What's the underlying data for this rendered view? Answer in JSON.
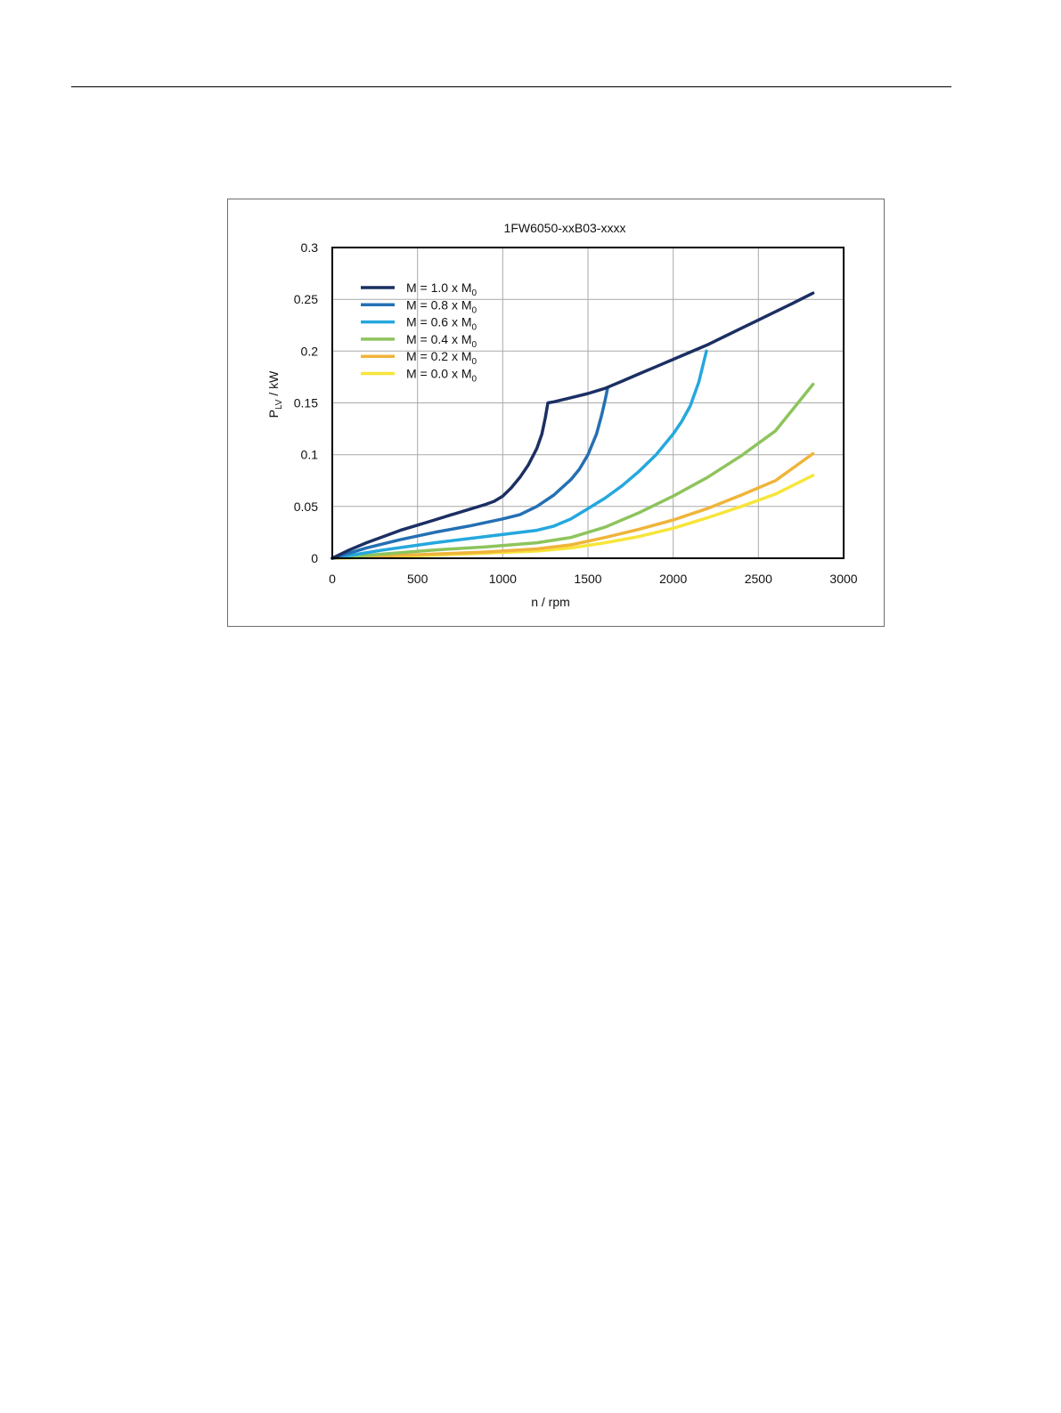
{
  "chart_data": {
    "type": "line",
    "title": "1FW6050-xxB03-xxxx",
    "xlabel": "n / rpm",
    "ylabel": {
      "main": "P",
      "sub": "LV",
      "rest": " / kW"
    },
    "xlim": [
      0,
      3000
    ],
    "ylim": [
      0,
      0.3
    ],
    "xticks": [
      0,
      500,
      1000,
      1500,
      2000,
      2500,
      3000
    ],
    "yticks": [
      0,
      0.05,
      0.1,
      0.15,
      0.2,
      0.25,
      0.3
    ],
    "xtick_labels": [
      "0",
      "500",
      "1000",
      "1500",
      "2000",
      "2500",
      "3000"
    ],
    "ytick_labels": [
      "0",
      "0.05",
      "0.1",
      "0.15",
      "0.2",
      "0.25",
      "0.3"
    ],
    "grid": true,
    "legend_position": "top-left",
    "series": [
      {
        "name": "M = 1.0 x M0",
        "label_main": "M = 1.0 x M",
        "label_sub": "0",
        "color": "#1b2f63",
        "x": [
          0,
          100,
          200,
          300,
          400,
          500,
          600,
          700,
          800,
          900,
          950,
          1000,
          1050,
          1100,
          1150,
          1200,
          1230,
          1250,
          1265,
          1300,
          1400,
          1500,
          1600,
          1700,
          1800,
          1900,
          2000,
          2100,
          2200,
          2300,
          2400,
          2500,
          2600,
          2700,
          2820
        ],
        "y": [
          0,
          0.008,
          0.015,
          0.021,
          0.027,
          0.032,
          0.037,
          0.042,
          0.047,
          0.052,
          0.055,
          0.06,
          0.068,
          0.078,
          0.09,
          0.106,
          0.12,
          0.136,
          0.15,
          0.151,
          0.155,
          0.159,
          0.164,
          0.171,
          0.178,
          0.185,
          0.192,
          0.199,
          0.206,
          0.214,
          0.222,
          0.23,
          0.238,
          0.246,
          0.256
        ]
      },
      {
        "name": "M = 0.8 x M0",
        "label_main": "M = 0.8 x M",
        "label_sub": "0",
        "color": "#2470b3",
        "x": [
          0,
          200,
          400,
          600,
          800,
          1000,
          1100,
          1200,
          1300,
          1400,
          1450,
          1500,
          1550,
          1580,
          1600,
          1615
        ],
        "y": [
          0,
          0.01,
          0.018,
          0.025,
          0.031,
          0.038,
          0.042,
          0.05,
          0.061,
          0.076,
          0.086,
          0.1,
          0.12,
          0.138,
          0.152,
          0.164
        ]
      },
      {
        "name": "M = 0.6 x M0",
        "label_main": "M = 0.6 x M",
        "label_sub": "0",
        "color": "#25a8de",
        "x": [
          0,
          300,
          600,
          900,
          1200,
          1300,
          1400,
          1500,
          1600,
          1700,
          1800,
          1900,
          2000,
          2050,
          2100,
          2150,
          2180,
          2195
        ],
        "y": [
          0,
          0.008,
          0.015,
          0.021,
          0.027,
          0.031,
          0.038,
          0.048,
          0.058,
          0.07,
          0.084,
          0.1,
          0.12,
          0.132,
          0.147,
          0.17,
          0.19,
          0.2
        ]
      },
      {
        "name": "M = 0.4 x M0",
        "label_main": "M = 0.4 x M",
        "label_sub": "0",
        "color": "#8dc45c",
        "x": [
          0,
          300,
          600,
          900,
          1200,
          1400,
          1600,
          1800,
          2000,
          2200,
          2400,
          2600,
          2820
        ],
        "y": [
          0,
          0.004,
          0.008,
          0.011,
          0.015,
          0.02,
          0.03,
          0.044,
          0.06,
          0.078,
          0.099,
          0.123,
          0.168
        ]
      },
      {
        "name": "M = 0.2 x M0",
        "label_main": "M = 0.2 x M",
        "label_sub": "0",
        "color": "#f0b43a",
        "x": [
          0,
          300,
          600,
          900,
          1200,
          1400,
          1600,
          1800,
          2000,
          2200,
          2400,
          2600,
          2820
        ],
        "y": [
          0,
          0.002,
          0.004,
          0.006,
          0.009,
          0.013,
          0.02,
          0.028,
          0.037,
          0.048,
          0.061,
          0.075,
          0.101
        ]
      },
      {
        "name": "M = 0.0 x M0",
        "label_main": "M = 0.0 x M",
        "label_sub": "0",
        "color": "#f7e53a",
        "x": [
          0,
          300,
          600,
          900,
          1200,
          1400,
          1600,
          1800,
          2000,
          2200,
          2400,
          2600,
          2820
        ],
        "y": [
          0,
          0.001,
          0.003,
          0.005,
          0.007,
          0.01,
          0.015,
          0.021,
          0.029,
          0.039,
          0.05,
          0.062,
          0.08
        ]
      }
    ]
  }
}
